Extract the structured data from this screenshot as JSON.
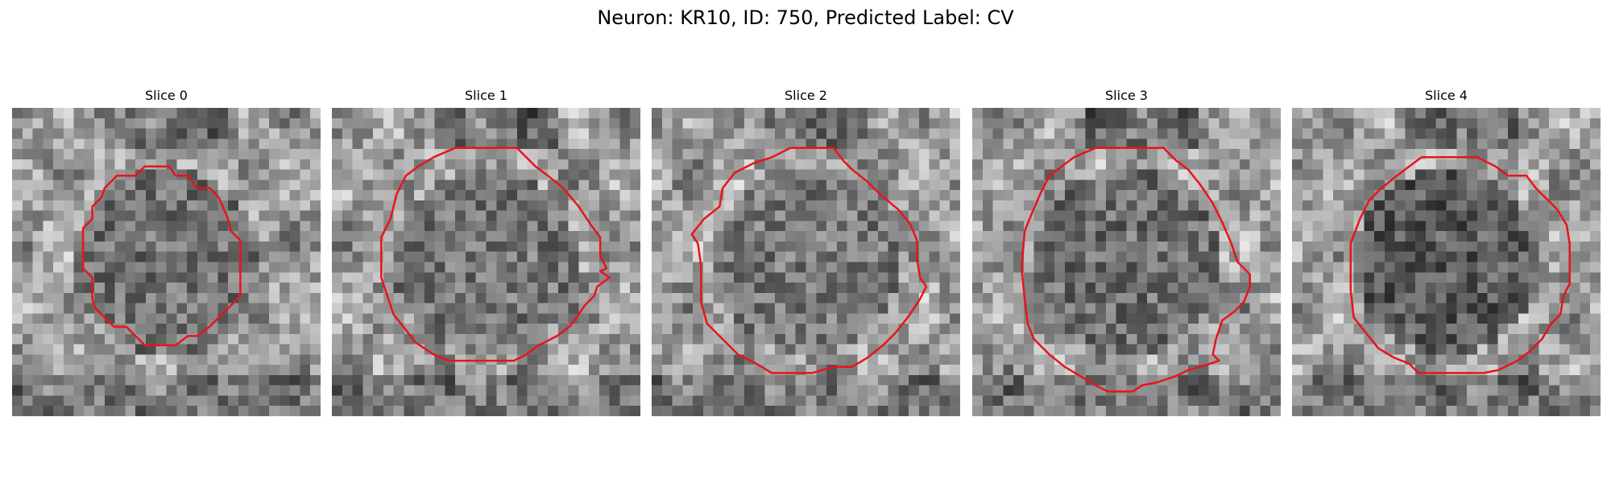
{
  "figure": {
    "title": "Neuron: KR10, ID: 750, Predicted Label: CV",
    "contour_color": "#e8141b",
    "colormap": "gray"
  },
  "slices": [
    {
      "title": "Slice 0",
      "bg_seed": 11,
      "dark_center": 0.44,
      "contour": [
        [
          0.43,
          0.19
        ],
        [
          0.51,
          0.19
        ],
        [
          0.53,
          0.22
        ],
        [
          0.57,
          0.22
        ],
        [
          0.6,
          0.26
        ],
        [
          0.64,
          0.26
        ],
        [
          0.67,
          0.29
        ],
        [
          0.7,
          0.36
        ],
        [
          0.71,
          0.4
        ],
        [
          0.74,
          0.43
        ],
        [
          0.74,
          0.59
        ],
        [
          0.74,
          0.61
        ],
        [
          0.7,
          0.65
        ],
        [
          0.67,
          0.68
        ],
        [
          0.64,
          0.71
        ],
        [
          0.6,
          0.74
        ],
        [
          0.57,
          0.74
        ],
        [
          0.53,
          0.77
        ],
        [
          0.43,
          0.77
        ],
        [
          0.4,
          0.74
        ],
        [
          0.37,
          0.71
        ],
        [
          0.33,
          0.71
        ],
        [
          0.3,
          0.68
        ],
        [
          0.27,
          0.65
        ],
        [
          0.26,
          0.62
        ],
        [
          0.26,
          0.55
        ],
        [
          0.23,
          0.52
        ],
        [
          0.23,
          0.39
        ],
        [
          0.26,
          0.36
        ],
        [
          0.26,
          0.32
        ],
        [
          0.29,
          0.29
        ],
        [
          0.3,
          0.26
        ],
        [
          0.34,
          0.22
        ],
        [
          0.4,
          0.22
        ]
      ]
    },
    {
      "title": "Slice 1",
      "bg_seed": 23,
      "dark_center": 0.46,
      "contour": [
        [
          0.4,
          0.13
        ],
        [
          0.6,
          0.13
        ],
        [
          0.66,
          0.19
        ],
        [
          0.7,
          0.22
        ],
        [
          0.75,
          0.26
        ],
        [
          0.8,
          0.32
        ],
        [
          0.84,
          0.38
        ],
        [
          0.87,
          0.42
        ],
        [
          0.87,
          0.48
        ],
        [
          0.89,
          0.52
        ],
        [
          0.87,
          0.53
        ],
        [
          0.9,
          0.55
        ],
        [
          0.86,
          0.58
        ],
        [
          0.85,
          0.61
        ],
        [
          0.82,
          0.64
        ],
        [
          0.8,
          0.67
        ],
        [
          0.77,
          0.71
        ],
        [
          0.73,
          0.74
        ],
        [
          0.67,
          0.77
        ],
        [
          0.63,
          0.8
        ],
        [
          0.59,
          0.82
        ],
        [
          0.38,
          0.82
        ],
        [
          0.33,
          0.8
        ],
        [
          0.27,
          0.76
        ],
        [
          0.24,
          0.72
        ],
        [
          0.2,
          0.67
        ],
        [
          0.18,
          0.61
        ],
        [
          0.16,
          0.55
        ],
        [
          0.16,
          0.42
        ],
        [
          0.19,
          0.36
        ],
        [
          0.21,
          0.28
        ],
        [
          0.24,
          0.22
        ],
        [
          0.28,
          0.19
        ],
        [
          0.33,
          0.16
        ]
      ]
    },
    {
      "title": "Slice 2",
      "bg_seed": 37,
      "dark_center": 0.47,
      "contour": [
        [
          0.39,
          0.16
        ],
        [
          0.45,
          0.13
        ],
        [
          0.59,
          0.13
        ],
        [
          0.62,
          0.17
        ],
        [
          0.65,
          0.2
        ],
        [
          0.7,
          0.24
        ],
        [
          0.74,
          0.28
        ],
        [
          0.8,
          0.33
        ],
        [
          0.84,
          0.38
        ],
        [
          0.86,
          0.43
        ],
        [
          0.86,
          0.49
        ],
        [
          0.87,
          0.55
        ],
        [
          0.89,
          0.58
        ],
        [
          0.87,
          0.62
        ],
        [
          0.85,
          0.65
        ],
        [
          0.83,
          0.68
        ],
        [
          0.79,
          0.73
        ],
        [
          0.75,
          0.77
        ],
        [
          0.7,
          0.81
        ],
        [
          0.65,
          0.84
        ],
        [
          0.59,
          0.84
        ],
        [
          0.52,
          0.86
        ],
        [
          0.39,
          0.86
        ],
        [
          0.34,
          0.83
        ],
        [
          0.28,
          0.8
        ],
        [
          0.23,
          0.75
        ],
        [
          0.18,
          0.7
        ],
        [
          0.16,
          0.63
        ],
        [
          0.16,
          0.51
        ],
        [
          0.15,
          0.44
        ],
        [
          0.13,
          0.41
        ],
        [
          0.17,
          0.36
        ],
        [
          0.22,
          0.32
        ],
        [
          0.23,
          0.26
        ],
        [
          0.27,
          0.21
        ],
        [
          0.33,
          0.18
        ]
      ]
    },
    {
      "title": "Slice 3",
      "bg_seed": 53,
      "dark_center": 0.43,
      "contour": [
        [
          0.33,
          0.16
        ],
        [
          0.4,
          0.13
        ],
        [
          0.62,
          0.13
        ],
        [
          0.66,
          0.17
        ],
        [
          0.7,
          0.2
        ],
        [
          0.74,
          0.25
        ],
        [
          0.78,
          0.31
        ],
        [
          0.81,
          0.37
        ],
        [
          0.84,
          0.44
        ],
        [
          0.86,
          0.5
        ],
        [
          0.9,
          0.54
        ],
        [
          0.9,
          0.58
        ],
        [
          0.88,
          0.63
        ],
        [
          0.85,
          0.66
        ],
        [
          0.81,
          0.69
        ],
        [
          0.79,
          0.75
        ],
        [
          0.78,
          0.8
        ],
        [
          0.8,
          0.82
        ],
        [
          0.74,
          0.84
        ],
        [
          0.7,
          0.85
        ],
        [
          0.66,
          0.87
        ],
        [
          0.6,
          0.89
        ],
        [
          0.55,
          0.9
        ],
        [
          0.52,
          0.92
        ],
        [
          0.44,
          0.92
        ],
        [
          0.4,
          0.9
        ],
        [
          0.35,
          0.87
        ],
        [
          0.3,
          0.84
        ],
        [
          0.25,
          0.8
        ],
        [
          0.2,
          0.75
        ],
        [
          0.18,
          0.7
        ],
        [
          0.17,
          0.62
        ],
        [
          0.16,
          0.52
        ],
        [
          0.17,
          0.4
        ],
        [
          0.19,
          0.35
        ],
        [
          0.22,
          0.28
        ],
        [
          0.25,
          0.22
        ],
        [
          0.29,
          0.19
        ]
      ]
    },
    {
      "title": "Slice 4",
      "bg_seed": 71,
      "dark_center": 0.35,
      "contour": [
        [
          0.42,
          0.16
        ],
        [
          0.6,
          0.16
        ],
        [
          0.66,
          0.19
        ],
        [
          0.7,
          0.22
        ],
        [
          0.76,
          0.22
        ],
        [
          0.79,
          0.26
        ],
        [
          0.82,
          0.29
        ],
        [
          0.86,
          0.33
        ],
        [
          0.89,
          0.38
        ],
        [
          0.9,
          0.44
        ],
        [
          0.9,
          0.57
        ],
        [
          0.88,
          0.61
        ],
        [
          0.87,
          0.67
        ],
        [
          0.84,
          0.7
        ],
        [
          0.81,
          0.75
        ],
        [
          0.77,
          0.79
        ],
        [
          0.73,
          0.82
        ],
        [
          0.67,
          0.85
        ],
        [
          0.62,
          0.86
        ],
        [
          0.41,
          0.86
        ],
        [
          0.38,
          0.83
        ],
        [
          0.33,
          0.81
        ],
        [
          0.28,
          0.78
        ],
        [
          0.24,
          0.73
        ],
        [
          0.2,
          0.68
        ],
        [
          0.19,
          0.59
        ],
        [
          0.19,
          0.44
        ],
        [
          0.22,
          0.36
        ],
        [
          0.25,
          0.3
        ],
        [
          0.29,
          0.26
        ],
        [
          0.34,
          0.22
        ],
        [
          0.38,
          0.19
        ]
      ]
    }
  ]
}
